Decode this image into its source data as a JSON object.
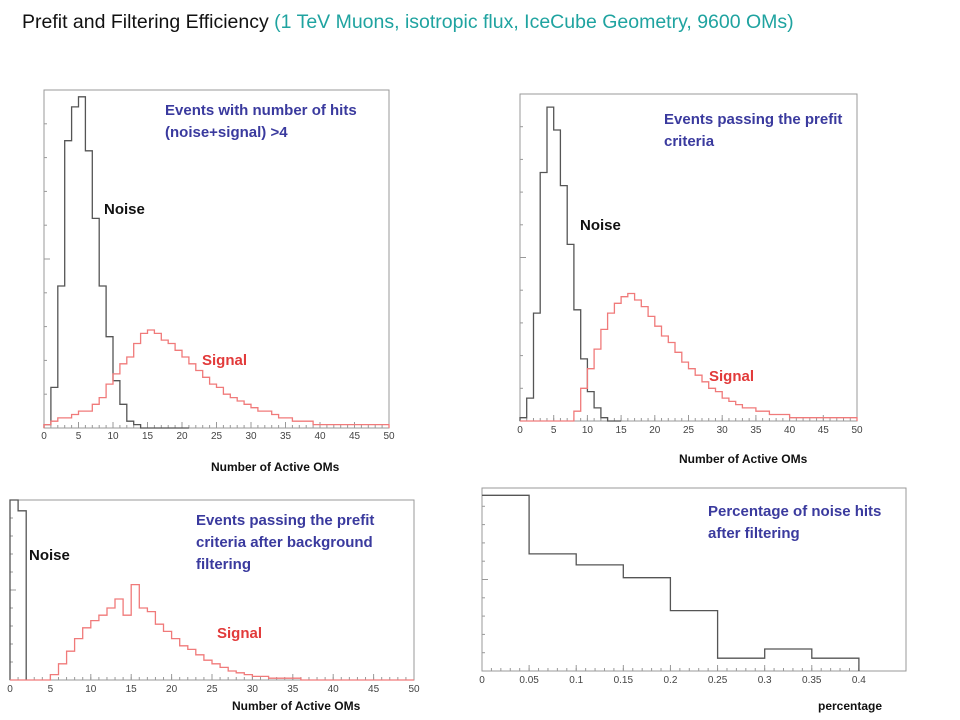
{
  "title": {
    "main": "Prefit and Filtering Efficiency",
    "sub": "(1 TeV Muons, isotropic flux, IceCube Geometry, 9600 OMs)"
  },
  "colors": {
    "noise": "#555555",
    "signal": "#f07a7a",
    "annotation": "#3a3a9e",
    "subtitle": "#1fa3a0",
    "signal_label": "#e23a3a"
  },
  "chart_data": [
    {
      "type": "histogram",
      "annotation": "Events with number of hits (noise+signal) >4",
      "xlabel": "Number of Active OMs",
      "xlim": [
        0,
        50
      ],
      "ylim": [
        0,
        1.0
      ],
      "xticks": [
        "0",
        "5",
        "10",
        "15",
        "20",
        "25",
        "30",
        "35",
        "40",
        "45",
        "50"
      ],
      "bin_width": 1,
      "series": [
        {
          "name": "Noise",
          "x": [
            0,
            1,
            2,
            3,
            4,
            5,
            6,
            7,
            8,
            9,
            10,
            11,
            12,
            13,
            14,
            15,
            16,
            17,
            18,
            19,
            20
          ],
          "values": [
            0.01,
            0.12,
            0.42,
            0.85,
            0.95,
            0.98,
            0.82,
            0.62,
            0.42,
            0.27,
            0.14,
            0.07,
            0.02,
            0.01,
            0,
            0,
            0,
            0,
            0,
            0,
            0
          ]
        },
        {
          "name": "Signal",
          "x": [
            0,
            1,
            2,
            3,
            4,
            5,
            6,
            7,
            8,
            9,
            10,
            11,
            12,
            13,
            14,
            15,
            16,
            17,
            18,
            19,
            20,
            21,
            22,
            23,
            24,
            25,
            26,
            27,
            28,
            29,
            30,
            31,
            32,
            33,
            34,
            35,
            36,
            37,
            38,
            39,
            40,
            41,
            42,
            43,
            44,
            45,
            46,
            47,
            48,
            49
          ],
          "values": [
            0.01,
            0.02,
            0.03,
            0.03,
            0.04,
            0.05,
            0.05,
            0.07,
            0.09,
            0.13,
            0.16,
            0.19,
            0.21,
            0.25,
            0.28,
            0.29,
            0.28,
            0.26,
            0.25,
            0.23,
            0.21,
            0.19,
            0.17,
            0.15,
            0.13,
            0.12,
            0.1,
            0.09,
            0.08,
            0.07,
            0.06,
            0.05,
            0.05,
            0.04,
            0.03,
            0.03,
            0.02,
            0.02,
            0.02,
            0.01,
            0.01,
            0.01,
            0.01,
            0.01,
            0.01,
            0.01,
            0.01,
            0.01,
            0.01,
            0.01
          ]
        }
      ]
    },
    {
      "type": "histogram",
      "annotation": "Events passing the prefit criteria",
      "xlabel": "Number of Active OMs",
      "xlim": [
        0,
        50
      ],
      "ylim": [
        0,
        1.0
      ],
      "xticks": [
        "0",
        "5",
        "10",
        "15",
        "20",
        "25",
        "30",
        "35",
        "40",
        "45",
        "50"
      ],
      "bin_width": 1,
      "series": [
        {
          "name": "Noise",
          "x": [
            0,
            1,
            2,
            3,
            4,
            5,
            6,
            7,
            8,
            9,
            10,
            11,
            12,
            13,
            14
          ],
          "values": [
            0.01,
            0.07,
            0.33,
            0.76,
            0.96,
            0.89,
            0.72,
            0.54,
            0.34,
            0.19,
            0.09,
            0.04,
            0.01,
            0,
            0
          ]
        },
        {
          "name": "Signal",
          "x": [
            0,
            1,
            2,
            3,
            4,
            5,
            6,
            7,
            8,
            9,
            10,
            11,
            12,
            13,
            14,
            15,
            16,
            17,
            18,
            19,
            20,
            21,
            22,
            23,
            24,
            25,
            26,
            27,
            28,
            29,
            30,
            31,
            32,
            33,
            34,
            35,
            36,
            37,
            38,
            39,
            40,
            41,
            42,
            43,
            44,
            45,
            46,
            47,
            48,
            49
          ],
          "values": [
            0,
            0,
            0,
            0,
            0,
            0,
            0,
            0,
            0.03,
            0.1,
            0.16,
            0.22,
            0.28,
            0.33,
            0.36,
            0.38,
            0.39,
            0.37,
            0.35,
            0.32,
            0.29,
            0.26,
            0.24,
            0.21,
            0.18,
            0.16,
            0.14,
            0.12,
            0.1,
            0.09,
            0.07,
            0.06,
            0.05,
            0.04,
            0.04,
            0.03,
            0.03,
            0.02,
            0.02,
            0.02,
            0.01,
            0.01,
            0.01,
            0.01,
            0.01,
            0.01,
            0.01,
            0.01,
            0.01,
            0.01
          ]
        }
      ]
    },
    {
      "type": "histogram",
      "annotation": "Events passing the prefit criteria after background filtering",
      "xlabel": "Number of Active OMs",
      "xlim": [
        0,
        50
      ],
      "ylim": [
        0,
        1.0
      ],
      "xticks": [
        "0",
        "5",
        "10",
        "15",
        "20",
        "25",
        "30",
        "35",
        "40",
        "45",
        "50"
      ],
      "bin_width": 1,
      "series": [
        {
          "name": "Noise",
          "x": [
            0,
            1
          ],
          "values": [
            1.0,
            0.94
          ]
        },
        {
          "name": "Signal",
          "x": [
            0,
            1,
            2,
            3,
            4,
            5,
            6,
            7,
            8,
            9,
            10,
            11,
            12,
            13,
            14,
            15,
            16,
            17,
            18,
            19,
            20,
            21,
            22,
            23,
            24,
            25,
            26,
            27,
            28,
            29,
            30,
            31,
            32,
            33,
            34,
            35,
            36,
            37,
            38,
            39,
            40,
            41,
            42,
            43,
            44,
            45,
            46,
            47,
            48,
            49
          ],
          "values": [
            0,
            0,
            0,
            0,
            0,
            0.03,
            0.09,
            0.16,
            0.23,
            0.29,
            0.33,
            0.36,
            0.4,
            0.45,
            0.36,
            0.53,
            0.4,
            0.38,
            0.31,
            0.27,
            0.23,
            0.19,
            0.17,
            0.14,
            0.11,
            0.09,
            0.07,
            0.05,
            0.04,
            0.03,
            0.02,
            0.02,
            0.01,
            0.01,
            0.01,
            0.01,
            0,
            0,
            0,
            0,
            0,
            0,
            0,
            0,
            0,
            0,
            0,
            0,
            0,
            0
          ]
        }
      ]
    },
    {
      "type": "histogram",
      "annotation": "Percentage of noise hits after filtering",
      "xlabel": "percentage",
      "xlim": [
        0,
        0.45
      ],
      "ylim": [
        0,
        1.0
      ],
      "xticks": [
        "0",
        "0.05",
        "0.1",
        "0.15",
        "0.2",
        "0.25",
        "0.3",
        "0.35",
        "0.4"
      ],
      "series": [
        {
          "name": "",
          "edges": [
            0,
            0.05,
            0.1,
            0.15,
            0.2,
            0.25,
            0.3,
            0.35,
            0.4
          ],
          "values": [
            0.96,
            0.64,
            0.58,
            0.51,
            0.33,
            0.07,
            0.12,
            0.07,
            0
          ]
        }
      ]
    }
  ]
}
